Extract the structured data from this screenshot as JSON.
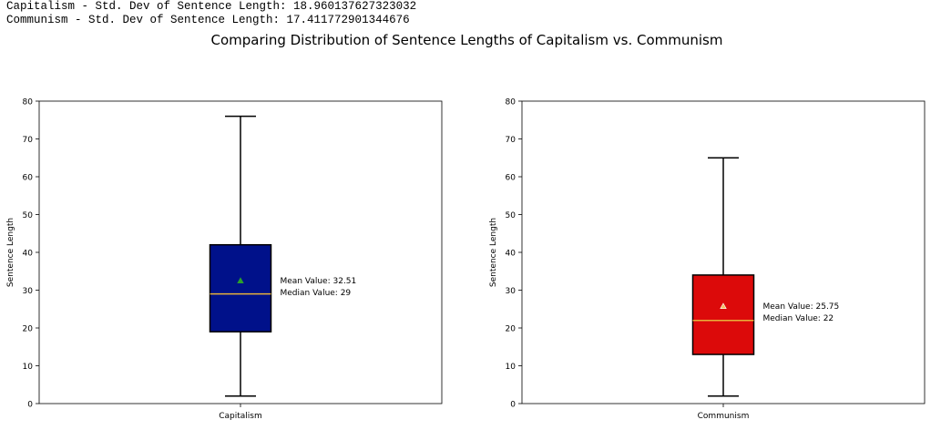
{
  "console_lines": [
    "Capitalism - Std. Dev of Sentence Length: 18.960137627323032",
    "Communism - Std. Dev of Sentence Length: 17.411772901344676"
  ],
  "figure_title": "Comparing Distribution of Sentence Lengths of Capitalism vs. Communism",
  "chart_data": [
    {
      "type": "box",
      "category": "Capitalism",
      "ylabel": "Sentence Length",
      "ylim": [
        0,
        80
      ],
      "yticks": [
        0,
        10,
        20,
        30,
        40,
        50,
        60,
        70,
        80
      ],
      "whisker_low": 2,
      "q1": 19,
      "median": 29,
      "q3": 42,
      "whisker_high": 76,
      "mean": 32.51,
      "box_color": "#00118a",
      "median_color": "#e8b23a",
      "mean_marker_color": "#2ca02c",
      "annotation_mean": "Mean Value: 32.51",
      "annotation_median": "Median Value: 29"
    },
    {
      "type": "box",
      "category": "Communism",
      "ylabel": "Sentence Length",
      "ylim": [
        0,
        80
      ],
      "yticks": [
        0,
        10,
        20,
        30,
        40,
        50,
        60,
        70,
        80
      ],
      "whisker_low": 2,
      "q1": 13,
      "median": 22,
      "q3": 34,
      "whisker_high": 65,
      "mean": 25.75,
      "box_color": "#dc0a0a",
      "median_color": "#e8b23a",
      "mean_marker_color": "#f0c060",
      "annotation_mean": "Mean Value: 25.75",
      "annotation_median": "Median Value: 22"
    }
  ]
}
